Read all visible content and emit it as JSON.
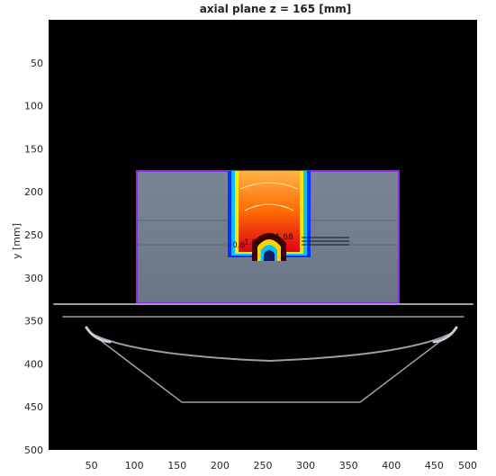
{
  "figure": {
    "title": "axial plane z = 165 [mm]",
    "ylabel": "y [mm]",
    "xticks": [
      "50",
      "100",
      "150",
      "200",
      "250",
      "300",
      "350",
      "400",
      "450",
      "500"
    ],
    "yticks": [
      "50",
      "100",
      "150",
      "200",
      "250",
      "300",
      "350",
      "400",
      "450",
      "500"
    ],
    "contour_labels": [
      "1.6",
      "81.68",
      "0.6"
    ]
  },
  "colors": {
    "background": "#000000",
    "phantom": "#6f7c8b",
    "outline": "#8a2be2",
    "couch": "#9aa0a8"
  },
  "chart_data": {
    "type": "heatmap",
    "title": "axial plane z = 165 [mm]",
    "xlabel": "",
    "ylabel": "y [mm]",
    "xlim": [
      0,
      500
    ],
    "ylim": [
      500,
      0
    ],
    "xticks": [
      50,
      100,
      150,
      200,
      250,
      300,
      350,
      400,
      450,
      500
    ],
    "yticks": [
      50,
      100,
      150,
      200,
      250,
      300,
      350,
      400,
      450,
      500
    ],
    "grid": false,
    "colormap": "jet",
    "contour_labels": [
      "1.6",
      "81.68",
      "0.6"
    ]
  }
}
